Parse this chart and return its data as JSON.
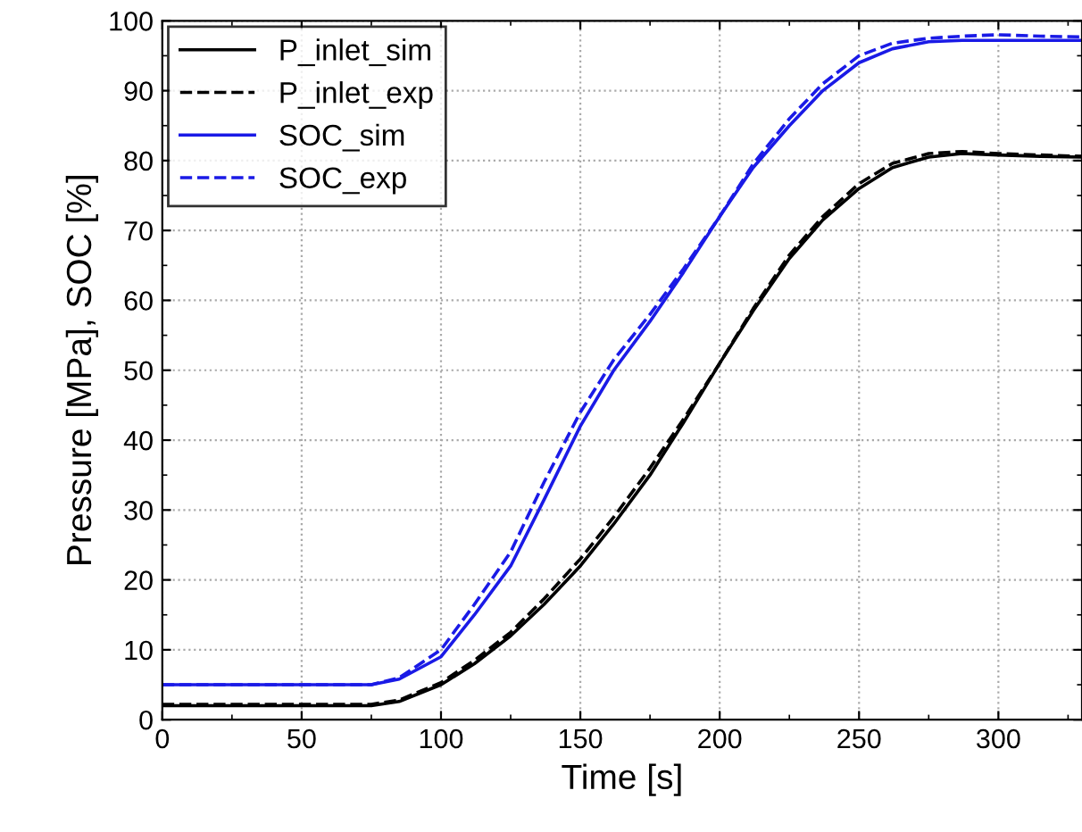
{
  "chart_data": {
    "type": "line",
    "xlabel": "Time [s]",
    "ylabel": "Pressure [MPa], SOC [%]",
    "xlim": [
      0,
      330
    ],
    "ylim": [
      0,
      100
    ],
    "xticks": [
      0,
      50,
      100,
      150,
      200,
      250,
      300
    ],
    "yticks": [
      0,
      10,
      20,
      30,
      40,
      50,
      60,
      70,
      80,
      90,
      100
    ],
    "grid": true,
    "legend": "top left",
    "marker": "none",
    "series": [
      {
        "name": "P_inlet_sim",
        "color": "#000000",
        "line_style": "solid",
        "x": [
          0,
          50,
          75,
          85,
          100,
          112,
          125,
          137,
          150,
          162,
          175,
          187,
          200,
          212,
          225,
          237,
          250,
          262,
          275,
          287,
          300,
          315,
          330
        ],
        "values": [
          2,
          2,
          2,
          2.6,
          5,
          8,
          12,
          16.5,
          22,
          28,
          35,
          42.5,
          51,
          58.5,
          66,
          71.5,
          76,
          79,
          80.5,
          81,
          80.8,
          80.6,
          80.5
        ]
      },
      {
        "name": "P_inlet_exp",
        "color": "#000000",
        "line_style": "dashed",
        "x": [
          0,
          50,
          75,
          85,
          100,
          112,
          125,
          137,
          150,
          162,
          175,
          187,
          200,
          212,
          225,
          237,
          250,
          262,
          275,
          287,
          300,
          315,
          330
        ],
        "values": [
          2.2,
          2.2,
          2.2,
          2.8,
          5.3,
          8.5,
          12.5,
          17.3,
          23,
          29,
          36,
          43,
          51,
          58.8,
          66.5,
          72,
          76.7,
          79.6,
          81,
          81.3,
          81,
          80.8,
          80.6
        ]
      },
      {
        "name": "SOC_sim",
        "color": "#1a1ae6",
        "line_style": "solid",
        "x": [
          0,
          50,
          75,
          85,
          100,
          112,
          125,
          137,
          150,
          162,
          175,
          187,
          200,
          212,
          225,
          237,
          250,
          262,
          275,
          287,
          300,
          315,
          330
        ],
        "values": [
          5,
          5,
          5,
          5.8,
          9,
          15,
          22,
          31.5,
          42,
          50,
          57,
          64,
          72,
          79,
          85,
          90,
          94,
          96,
          97,
          97.2,
          97.2,
          97.2,
          97.2
        ]
      },
      {
        "name": "SOC_exp",
        "color": "#1a1ae6",
        "line_style": "dashed",
        "x": [
          0,
          50,
          75,
          85,
          100,
          112,
          125,
          137,
          150,
          162,
          175,
          187,
          200,
          212,
          225,
          237,
          250,
          262,
          275,
          287,
          300,
          315,
          330
        ],
        "values": [
          5,
          5,
          5,
          6,
          10,
          16.5,
          24,
          34,
          44,
          51.5,
          58,
          64.5,
          72,
          79.5,
          86,
          91,
          95,
          96.8,
          97.5,
          97.8,
          98,
          97.8,
          97.7
        ]
      }
    ]
  }
}
